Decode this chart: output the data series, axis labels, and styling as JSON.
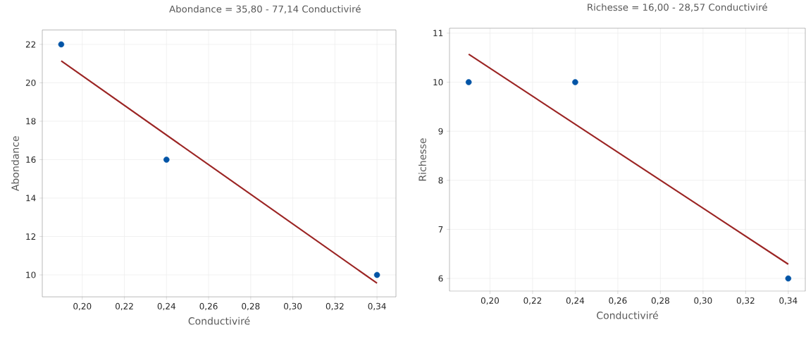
{
  "chart_data": [
    {
      "type": "scatter",
      "title": "Abondance = 35,80 - 77,14 Conductiviré",
      "xlabel": "Conductiviré",
      "ylabel": "Abondance",
      "xlim": [
        0.181,
        0.349
      ],
      "ylim": [
        8.86,
        22.75
      ],
      "xticks": [
        {
          "value": 0.2,
          "label": "0,20"
        },
        {
          "value": 0.22,
          "label": "0,22"
        },
        {
          "value": 0.24,
          "label": "0,24"
        },
        {
          "value": 0.26,
          "label": "0,26"
        },
        {
          "value": 0.28,
          "label": "0,28"
        },
        {
          "value": 0.3,
          "label": "0,30"
        },
        {
          "value": 0.32,
          "label": "0,32"
        },
        {
          "value": 0.34,
          "label": "0,34"
        }
      ],
      "yticks": [
        10,
        12,
        14,
        16,
        18,
        20,
        22
      ],
      "grid": true,
      "series": [
        {
          "type": "scatter",
          "color": "#0054a6",
          "marker": "circle",
          "x": [
            0.19,
            0.24,
            0.34
          ],
          "values": [
            22,
            16,
            10
          ]
        },
        {
          "type": "line",
          "color": "#9b2423",
          "line_style": "solid",
          "x": [
            0.19,
            0.34
          ],
          "values": [
            21.14,
            9.57
          ]
        }
      ]
    },
    {
      "type": "scatter",
      "title": "Richesse = 16,00 - 28,57 Conductiviré",
      "xlabel": "Conductiviré",
      "ylabel": "Richesse",
      "xlim": [
        0.181,
        0.348
      ],
      "ylim": [
        5.74,
        11.1
      ],
      "xticks": [
        {
          "value": 0.2,
          "label": "0,20"
        },
        {
          "value": 0.22,
          "label": "0,22"
        },
        {
          "value": 0.24,
          "label": "0,24"
        },
        {
          "value": 0.26,
          "label": "0,26"
        },
        {
          "value": 0.28,
          "label": "0,28"
        },
        {
          "value": 0.3,
          "label": "0,30"
        },
        {
          "value": 0.32,
          "label": "0,32"
        },
        {
          "value": 0.34,
          "label": "0,34"
        }
      ],
      "yticks": [
        6,
        7,
        8,
        9,
        10,
        11
      ],
      "grid": true,
      "series": [
        {
          "type": "scatter",
          "color": "#0054a6",
          "marker": "circle",
          "x": [
            0.19,
            0.24,
            0.34
          ],
          "values": [
            10,
            10,
            6
          ]
        },
        {
          "type": "line",
          "color": "#9b2423",
          "line_style": "solid",
          "x": [
            0.19,
            0.34
          ],
          "values": [
            10.57,
            6.29
          ]
        }
      ]
    }
  ]
}
